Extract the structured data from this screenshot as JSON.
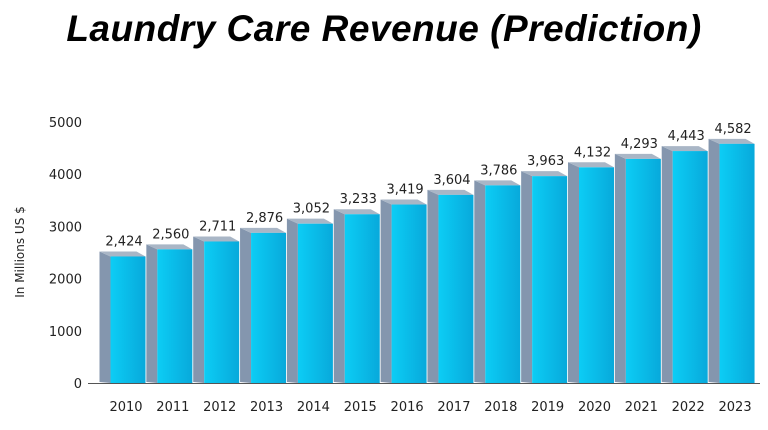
{
  "chart_data": {
    "type": "bar",
    "title": "Laundry Care Revenue (Prediction)",
    "xlabel": "",
    "ylabel": "In Millions US $",
    "ylim": [
      0,
      5000
    ],
    "yticks": [
      0,
      1000,
      2000,
      3000,
      4000,
      5000
    ],
    "categories": [
      "2010",
      "2011",
      "2012",
      "2013",
      "2014",
      "2015",
      "2016",
      "2017",
      "2018",
      "2019",
      "2020",
      "2021",
      "2022",
      "2023"
    ],
    "values": [
      2424,
      2560,
      2711,
      2876,
      3052,
      3233,
      3419,
      3604,
      3786,
      3963,
      4132,
      4293,
      4443,
      4582
    ],
    "data_labels": [
      "2,424",
      "2,560",
      "2,711",
      "2,876",
      "3,052",
      "3,233",
      "3,419",
      "3,604",
      "3,786",
      "3,963",
      "4,132",
      "4,293",
      "4,443",
      "4,582"
    ],
    "grid": false,
    "colors": {
      "front": "#0bbbe8",
      "side": "#8496ae",
      "top": "#a9b6c6"
    }
  }
}
